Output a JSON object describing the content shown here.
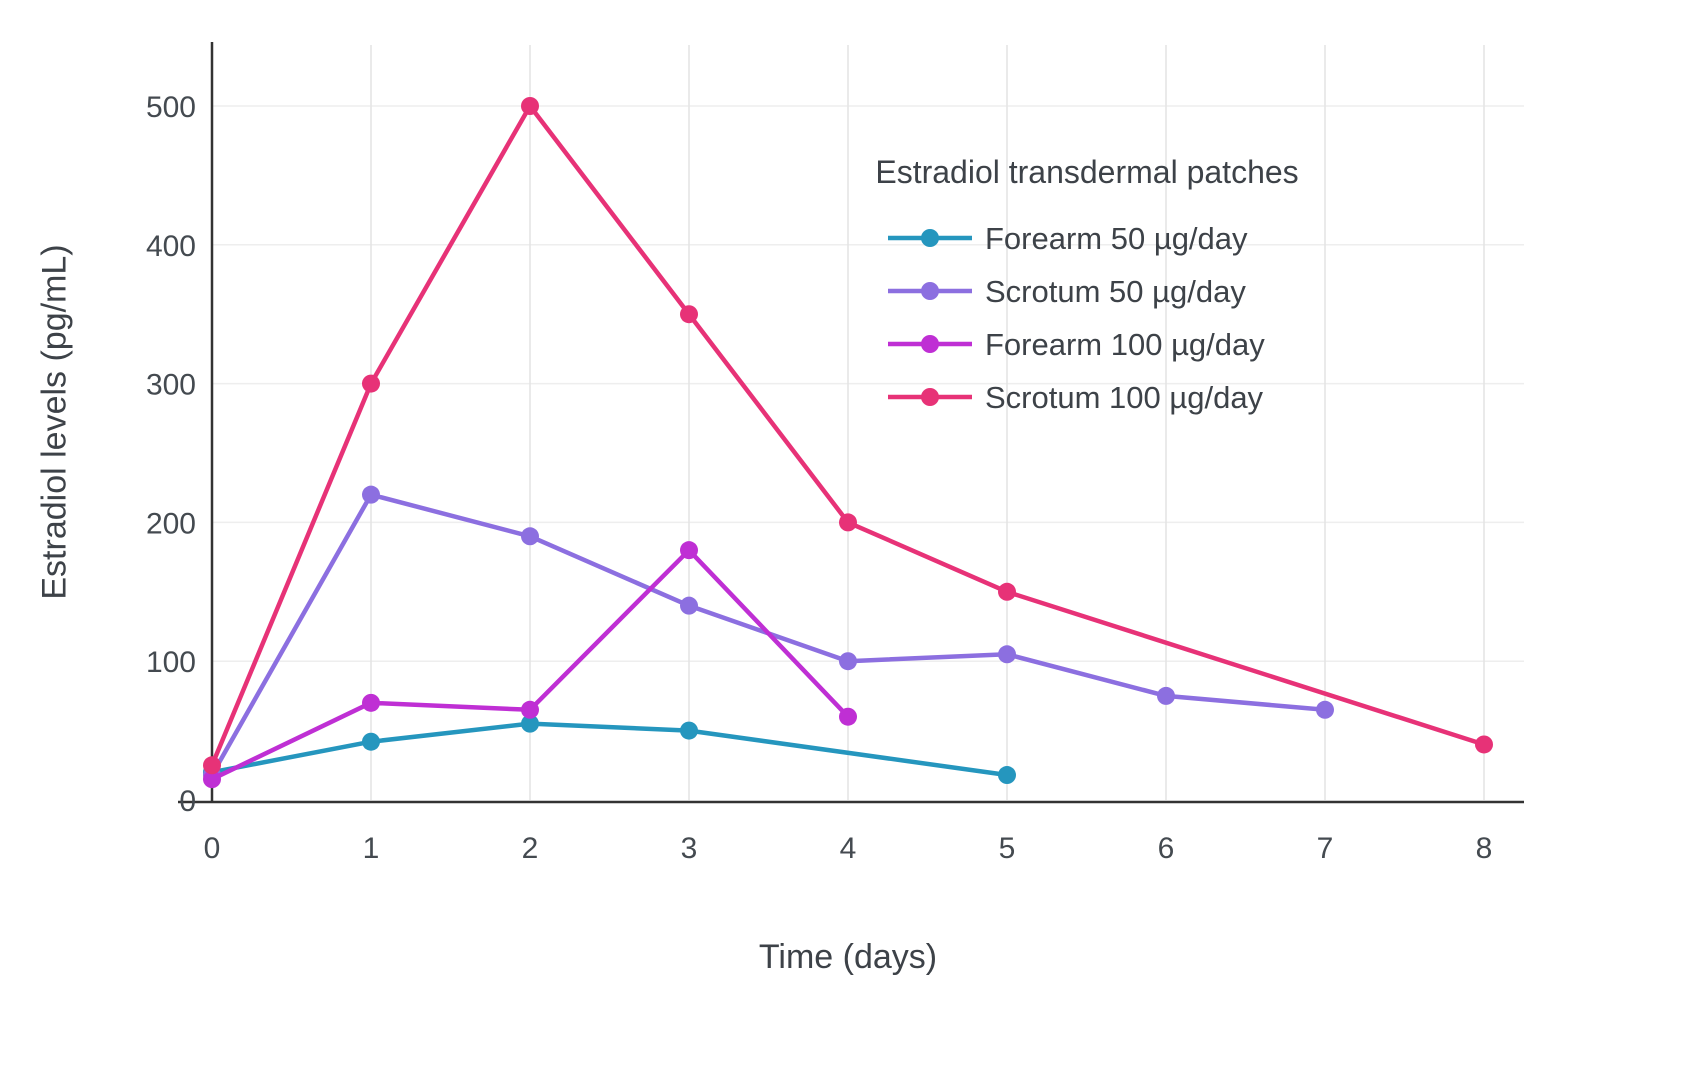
{
  "chart_data": {
    "type": "line",
    "title": "",
    "legend_title": "Estradiol transdermal patches",
    "xlabel": "Time (days)",
    "ylabel": "Estradiol levels (pg/mL)",
    "xlim": [
      0,
      8
    ],
    "ylim": [
      0,
      500
    ],
    "xticks": [
      0,
      1,
      2,
      3,
      4,
      5,
      6,
      7,
      8
    ],
    "yticks": [
      0,
      100,
      200,
      300,
      400,
      500
    ],
    "grid": true,
    "legend_position": "inside-top-right",
    "series": [
      {
        "name": "Forearm 50 µg/day",
        "color": "#2596be",
        "x": [
          0,
          1,
          2,
          3,
          5
        ],
        "y": [
          20,
          42,
          55,
          50,
          18
        ]
      },
      {
        "name": "Scrotum 50 µg/day",
        "color": "#8c6fe0",
        "x": [
          0,
          1,
          2,
          3,
          4,
          5,
          6,
          7
        ],
        "y": [
          18,
          220,
          190,
          140,
          100,
          105,
          75,
          65
        ]
      },
      {
        "name": "Forearm 100 µg/day",
        "color": "#bf2fd4",
        "x": [
          0,
          1,
          2,
          3,
          4
        ],
        "y": [
          15,
          70,
          65,
          180,
          60
        ]
      },
      {
        "name": "Scrotum 100 µg/day",
        "color": "#e73277",
        "x": [
          0,
          1,
          2,
          3,
          4,
          5,
          8
        ],
        "y": [
          25,
          300,
          500,
          350,
          200,
          150,
          40
        ]
      }
    ]
  }
}
